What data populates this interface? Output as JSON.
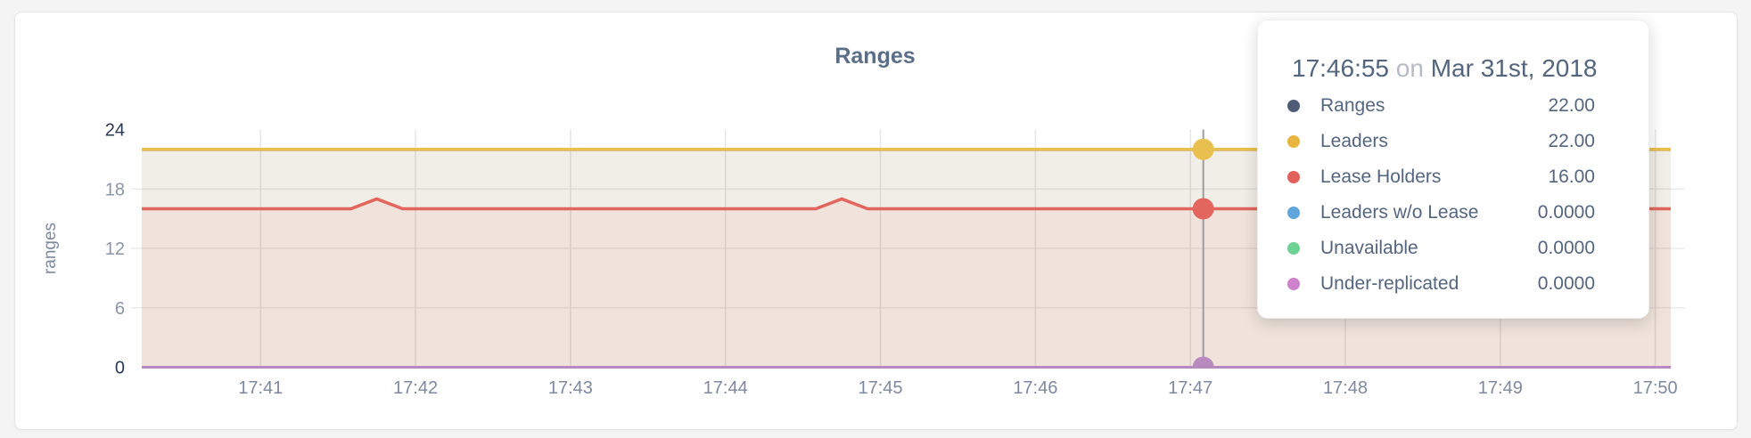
{
  "page": {
    "background": "#f4f4f5",
    "card_background": "#ffffff"
  },
  "chart": {
    "title": "Ranges"
  },
  "tooltip": {
    "time": "17:46:55",
    "connector": "on",
    "date": "Mar 31st, 2018",
    "rows": [
      {
        "label": "Ranges",
        "value": "22.00",
        "color": "#4e5b77"
      },
      {
        "label": "Leaders",
        "value": "22.00",
        "color": "#e8b63e"
      },
      {
        "label": "Lease Holders",
        "value": "16.00",
        "color": "#e2605a"
      },
      {
        "label": "Leaders w/o Lease",
        "value": "0.0000",
        "color": "#60a5dc"
      },
      {
        "label": "Unavailable",
        "value": "0.0000",
        "color": "#6fd295"
      },
      {
        "label": "Under-replicated",
        "value": "0.0000",
        "color": "#cd82c9"
      }
    ]
  },
  "chart_data": {
    "type": "area",
    "title": "Ranges",
    "xlabel": "",
    "ylabel": "ranges",
    "ylim": [
      0,
      24
    ],
    "yticks": [
      0,
      6,
      12,
      18,
      24
    ],
    "grid": true,
    "legend_position": "tooltip",
    "x_axis": {
      "unit": "seconds after 17:40:00",
      "domain": [
        14,
        606
      ],
      "ticks": [
        {
          "t": 60,
          "label": "17:41"
        },
        {
          "t": 120,
          "label": "17:42"
        },
        {
          "t": 180,
          "label": "17:43"
        },
        {
          "t": 240,
          "label": "17:44"
        },
        {
          "t": 300,
          "label": "17:45"
        },
        {
          "t": 360,
          "label": "17:46"
        },
        {
          "t": 420,
          "label": "17:47"
        },
        {
          "t": 480,
          "label": "17:48"
        },
        {
          "t": 540,
          "label": "17:49"
        },
        {
          "t": 600,
          "label": "17:50"
        }
      ]
    },
    "series": [
      {
        "name": "Ranges",
        "color": "#4e5b77",
        "area": true,
        "points": [
          [
            14,
            22
          ],
          [
            606,
            22
          ]
        ]
      },
      {
        "name": "Leaders",
        "color": "#e9c04f",
        "area": true,
        "points": [
          [
            14,
            22
          ],
          [
            606,
            22
          ]
        ]
      },
      {
        "name": "Lease Holders",
        "color": "#e2655e",
        "area": true,
        "points": [
          [
            14,
            16
          ],
          [
            95,
            16
          ],
          [
            105,
            17
          ],
          [
            115,
            16
          ],
          [
            275,
            16
          ],
          [
            285,
            17
          ],
          [
            295,
            16
          ],
          [
            606,
            16
          ]
        ]
      },
      {
        "name": "Leaders w/o Lease",
        "color": "#60a5dc",
        "area": false,
        "points": [
          [
            14,
            0
          ],
          [
            606,
            0
          ]
        ]
      },
      {
        "name": "Unavailable",
        "color": "#6fd295",
        "area": false,
        "points": [
          [
            14,
            0
          ],
          [
            606,
            0
          ]
        ]
      },
      {
        "name": "Under-replicated",
        "color": "#b88ac0",
        "area": false,
        "points": [
          [
            14,
            0
          ],
          [
            606,
            0
          ]
        ]
      }
    ],
    "hover": {
      "t": 425,
      "time_label": "17:46:55",
      "marker_series": [
        "Leaders",
        "Lease Holders",
        "Under-replicated"
      ]
    }
  }
}
